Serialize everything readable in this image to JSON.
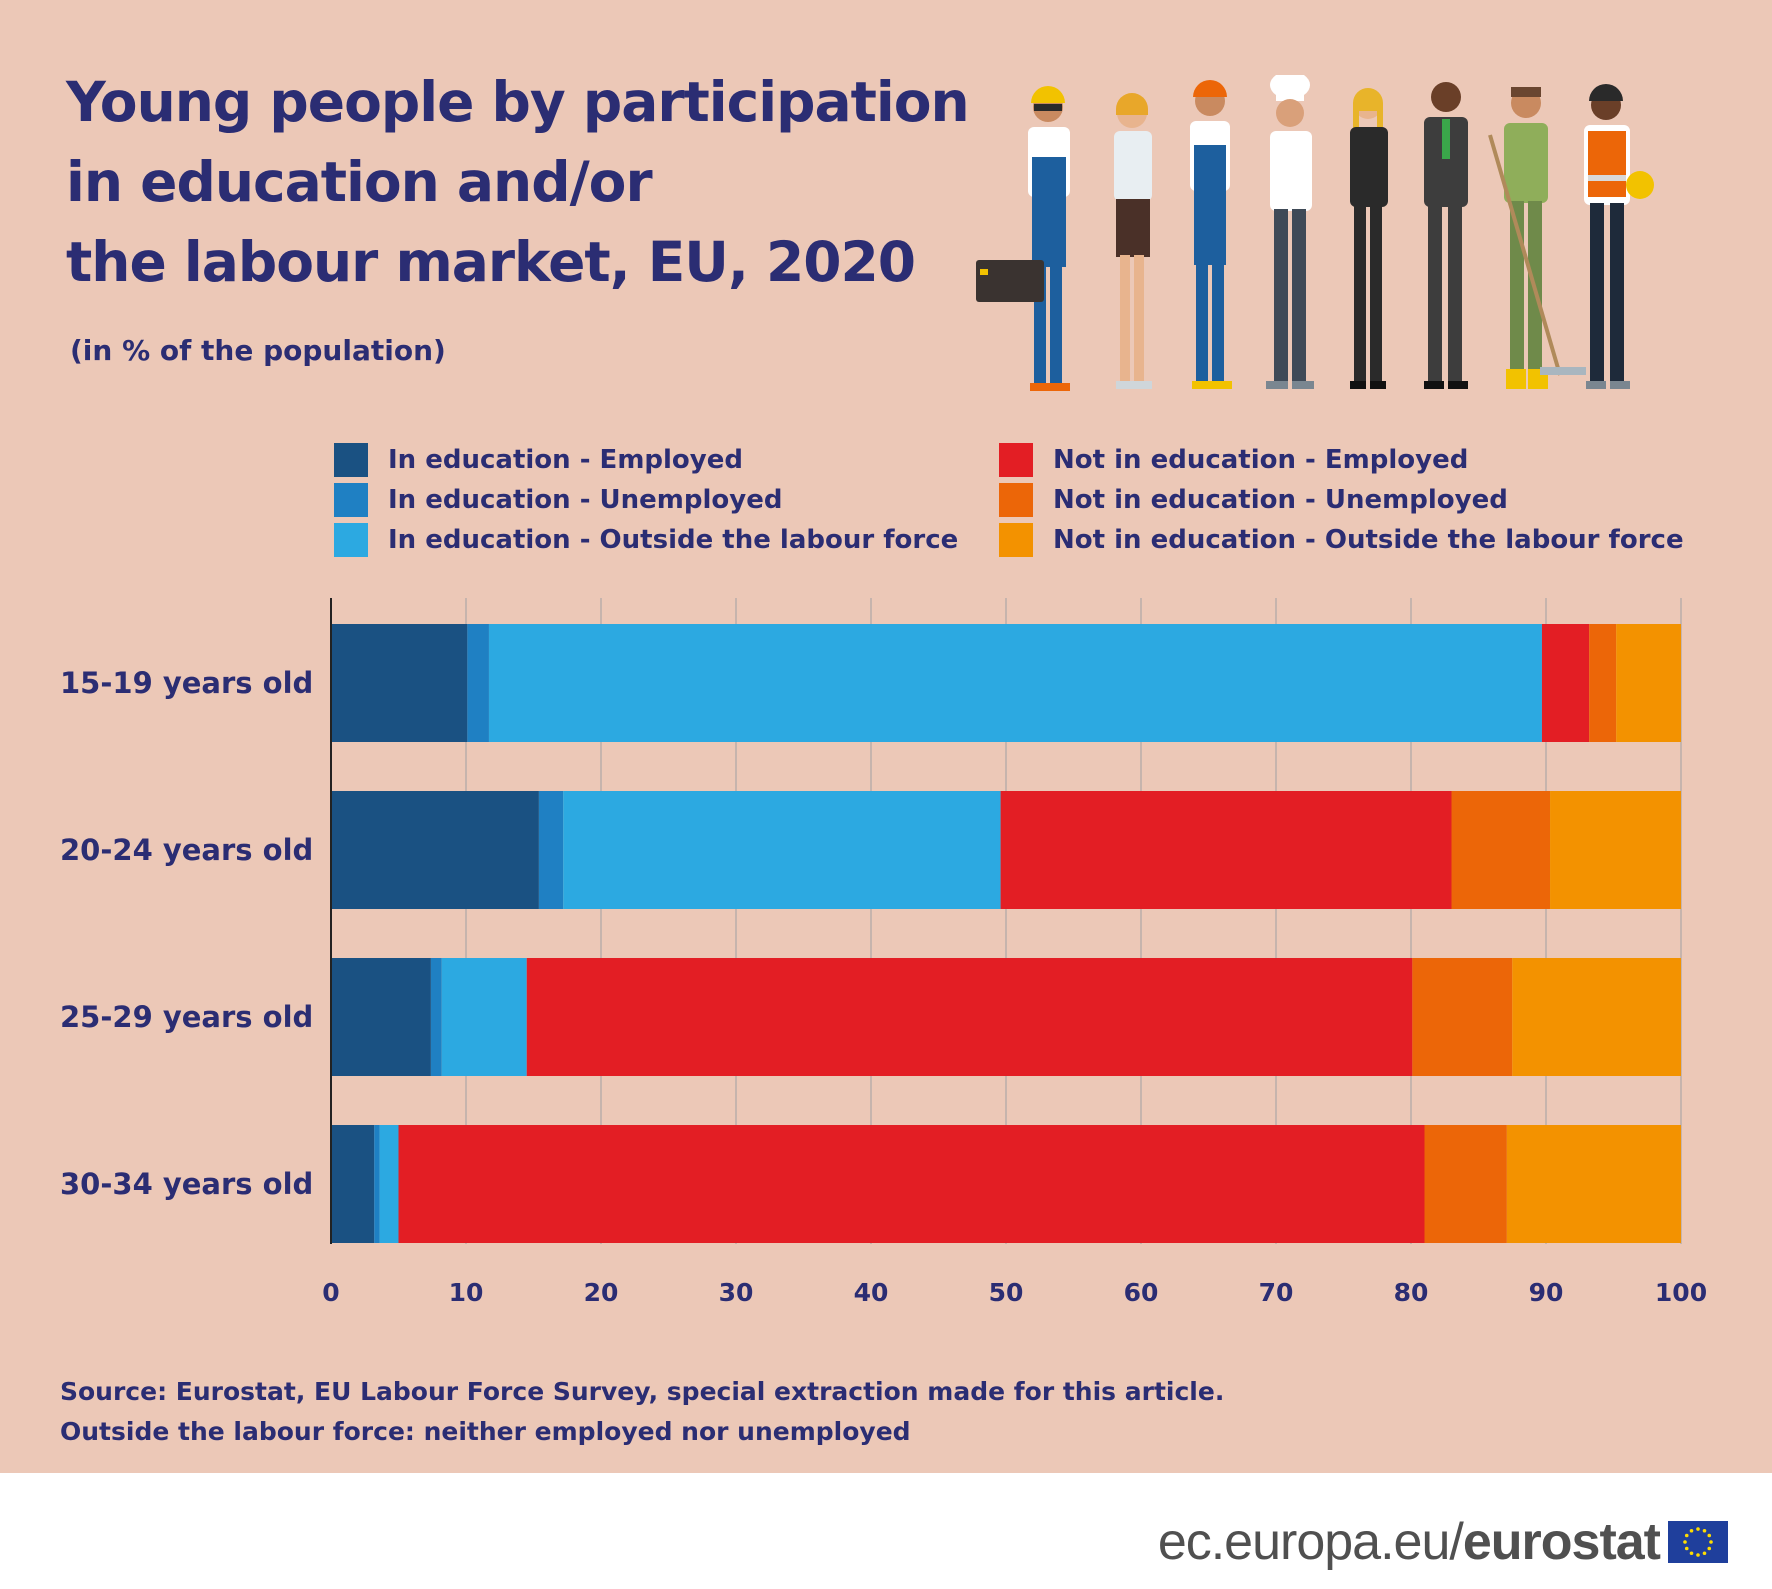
{
  "title_lines": [
    "Young people by participation",
    "in education and/or",
    "the labour market, EU, 2020"
  ],
  "subtitle": "(in % of the population)",
  "legend": [
    {
      "label": "In education - Employed",
      "color": "#1a5182"
    },
    {
      "label": "In education - Unemployed",
      "color": "#1f80c3"
    },
    {
      "label": "In education - Outside the labour force",
      "color": "#2ca9e1"
    },
    {
      "label": "Not in education - Employed",
      "color": "#e31e24"
    },
    {
      "label": "Not in education - Unemployed",
      "color": "#ec6608"
    },
    {
      "label": "Not in education - Outside the labour force",
      "color": "#f39200"
    }
  ],
  "chart_data": {
    "type": "bar",
    "orientation": "horizontal",
    "stacked": true,
    "categories": [
      "15-19 years old",
      "20-24 years old",
      "25-29 years old",
      "30-34 years old"
    ],
    "series": [
      {
        "name": "In education - Employed",
        "values": [
          10.1,
          15.4,
          7.4,
          3.2
        ]
      },
      {
        "name": "In education - Unemployed",
        "values": [
          1.6,
          1.8,
          0.8,
          0.4
        ]
      },
      {
        "name": "In education - Outside the labour force",
        "values": [
          78.0,
          32.4,
          6.3,
          1.4
        ]
      },
      {
        "name": "Not in education - Employed",
        "values": [
          3.5,
          33.4,
          65.6,
          76.0
        ]
      },
      {
        "name": "Not in education - Unemployed",
        "values": [
          2.0,
          7.3,
          7.4,
          6.1
        ]
      },
      {
        "name": "Not in education - Outside the labour force",
        "values": [
          4.8,
          9.7,
          12.5,
          12.9
        ]
      }
    ],
    "xlim": [
      0,
      100
    ],
    "xticks": [
      0,
      10,
      20,
      30,
      40,
      50,
      60,
      70,
      80,
      90,
      100
    ],
    "grid": true,
    "legend_position": "top"
  },
  "source_lines": [
    "Source: Eurostat, EU Labour Force Survey, special extraction made for this article.",
    "Outside the labour force: neither employed nor unemployed"
  ],
  "footer": {
    "url_prefix": "ec.europa.eu/",
    "brand": "eurostat"
  }
}
